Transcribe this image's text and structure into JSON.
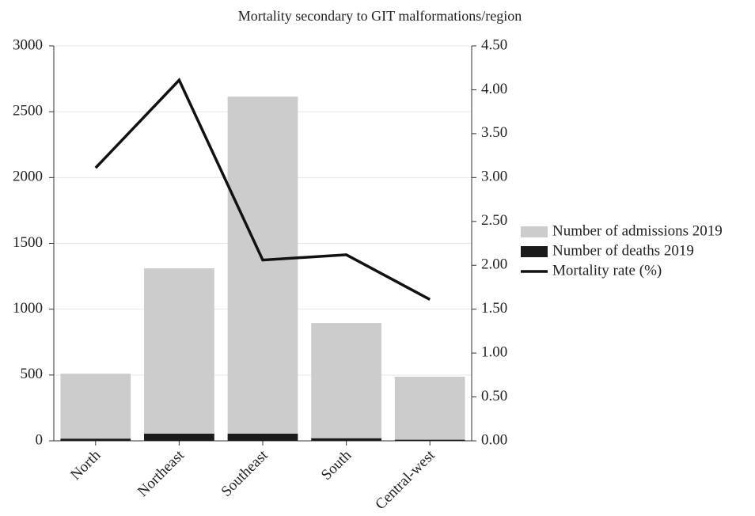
{
  "chart_data": {
    "type": "bar",
    "title": "Mortality secondary to GIT malformations/region",
    "categories": [
      "North",
      "Northeast",
      "Southeast",
      "South",
      "Central-west"
    ],
    "series": [
      {
        "name": "Number of admissions 2019",
        "color": "#cccccc",
        "type": "bar",
        "values": [
          510,
          1310,
          2615,
          895,
          487
        ]
      },
      {
        "name": "Number of deaths 2019",
        "color": "#1a1a1a",
        "type": "bar",
        "values": [
          16,
          54,
          54,
          19,
          8
        ]
      },
      {
        "name": "Mortality rate (%)",
        "color": "#111111",
        "type": "line",
        "axis": "y2",
        "values": [
          3.11,
          4.11,
          2.06,
          2.12,
          1.61
        ]
      }
    ],
    "ylim": [
      0,
      3000
    ],
    "yticks": [
      0,
      500,
      1000,
      1500,
      2000,
      2500,
      3000
    ],
    "y2lim": [
      0,
      4.5
    ],
    "y2ticks": [
      {
        "value": 0,
        "label": "0.00"
      },
      {
        "value": 0.5,
        "label": "0.50"
      },
      {
        "value": 1,
        "label": "1.00"
      },
      {
        "value": 1.5,
        "label": "1.50"
      },
      {
        "value": 2,
        "label": "2.00"
      },
      {
        "value": 2.5,
        "label": "2.50"
      },
      {
        "value": 3,
        "label": "3.00"
      },
      {
        "value": 3.5,
        "label": "3.50"
      },
      {
        "value": 4,
        "label": "4.00"
      },
      {
        "value": 4.5,
        "label": "4.50"
      }
    ],
    "grid": true,
    "legend": "right"
  }
}
